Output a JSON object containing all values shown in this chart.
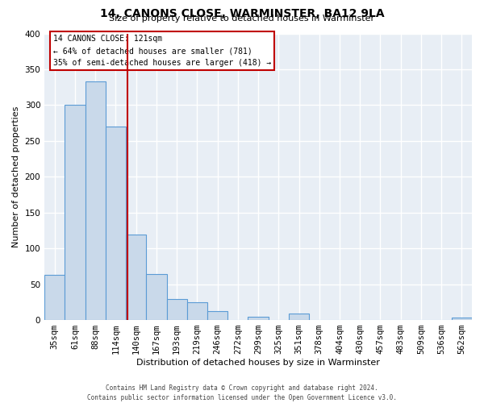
{
  "title": "14, CANONS CLOSE, WARMINSTER, BA12 9LA",
  "subtitle": "Size of property relative to detached houses in Warminster",
  "xlabel": "Distribution of detached houses by size in Warminster",
  "ylabel": "Number of detached properties",
  "bin_labels": [
    "35sqm",
    "61sqm",
    "88sqm",
    "114sqm",
    "140sqm",
    "167sqm",
    "193sqm",
    "219sqm",
    "246sqm",
    "272sqm",
    "299sqm",
    "325sqm",
    "351sqm",
    "378sqm",
    "404sqm",
    "430sqm",
    "457sqm",
    "483sqm",
    "509sqm",
    "536sqm",
    "562sqm"
  ],
  "bin_counts": [
    63,
    300,
    333,
    270,
    119,
    64,
    29,
    25,
    13,
    0,
    5,
    0,
    9,
    0,
    0,
    0,
    0,
    0,
    0,
    0,
    3
  ],
  "bar_color": "#c9d9ea",
  "bar_edge_color": "#5b9bd5",
  "vline_x": 3.57,
  "vline_color": "#c00000",
  "annotation_title": "14 CANONS CLOSE: 121sqm",
  "annotation_line1": "← 64% of detached houses are smaller (781)",
  "annotation_line2": "35% of semi-detached houses are larger (418) →",
  "annotation_box_color": "#c00000",
  "footer_line1": "Contains HM Land Registry data © Crown copyright and database right 2024.",
  "footer_line2": "Contains public sector information licensed under the Open Government Licence v3.0.",
  "ylim": [
    0,
    400
  ],
  "yticks": [
    0,
    50,
    100,
    150,
    200,
    250,
    300,
    350,
    400
  ],
  "plot_background": "#e8eef5",
  "grid_color": "white",
  "title_fontsize": 10,
  "subtitle_fontsize": 8,
  "xlabel_fontsize": 8,
  "ylabel_fontsize": 8,
  "tick_fontsize": 7.5,
  "footer_fontsize": 5.5
}
